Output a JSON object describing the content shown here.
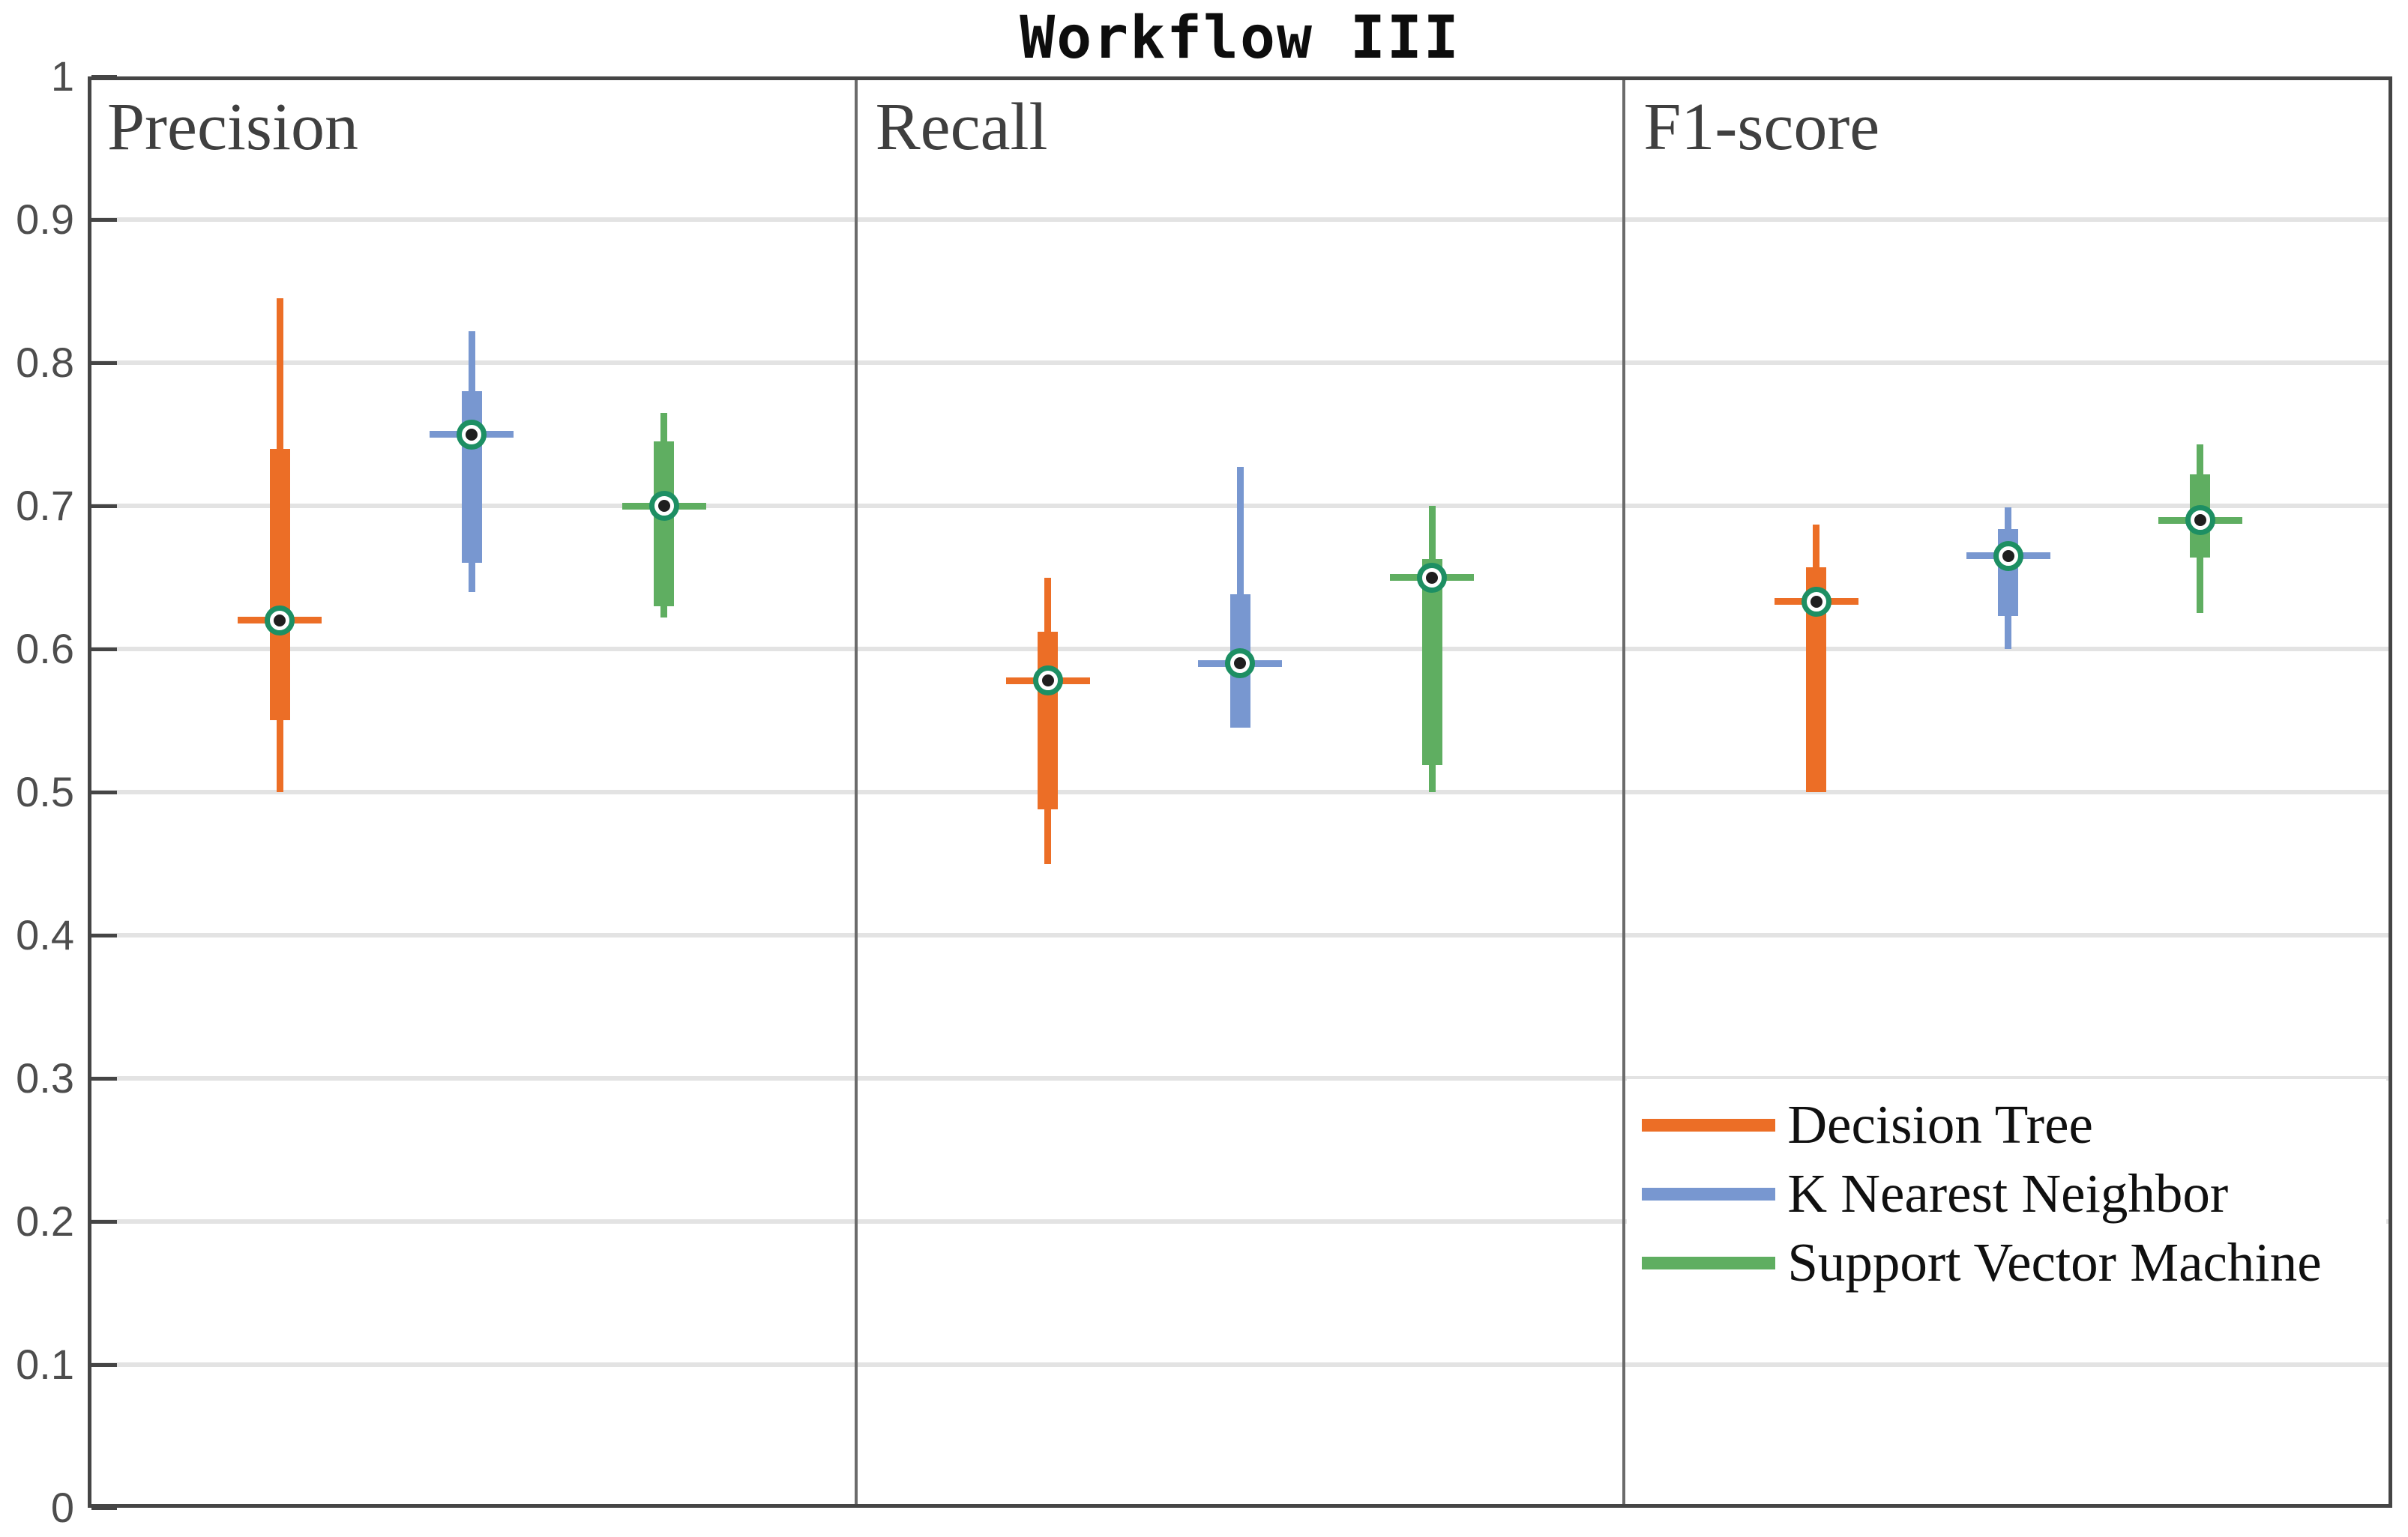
{
  "title": "Workflow III",
  "panel_labels": [
    "Precision",
    "Recall",
    "F1-score"
  ],
  "y_axis": {
    "tick_labels": [
      "0",
      "0.1",
      "0.2",
      "0.3",
      "0.4",
      "0.5",
      "0.6",
      "0.7",
      "0.8",
      "0.9",
      "1"
    ],
    "min": 0,
    "max": 1
  },
  "legend": {
    "items": [
      {
        "label": "Decision Tree",
        "color": "#EC6E26"
      },
      {
        "label": "K Nearest Neighbor",
        "color": "#7897D0"
      },
      {
        "label": "Support Vector Machine",
        "color": "#5FAE61"
      }
    ]
  },
  "style_colors": {
    "axis_border": "#454545",
    "panel_divider": "#6b6b6b",
    "gridline": "#e3e3e3",
    "tick_label": "#4d4d4d",
    "panel_label": "#3f3f3f",
    "median_ring": "#1d8f63",
    "median_dot": "#1f1f1f",
    "decision_tree": "#EC6E26",
    "k_nearest_neighbor": "#7897D0",
    "support_vector_machine": "#5FAE61"
  },
  "chart_data": {
    "type": "boxplot",
    "title": "Workflow III",
    "panels": [
      "Precision",
      "Recall",
      "F1-score"
    ],
    "ylim": [
      0,
      1
    ],
    "yticks": [
      0,
      0.1,
      0.2,
      0.3,
      0.4,
      0.5,
      0.6,
      0.7,
      0.8,
      0.9,
      1
    ],
    "grid": true,
    "legend_position": "bottom-right",
    "series": [
      {
        "name": "Decision Tree",
        "color": "#EC6E26",
        "boxes": {
          "Precision": {
            "whisker_low": 0.5,
            "q1": 0.55,
            "median": 0.62,
            "q3": 0.74,
            "whisker_high": 0.845
          },
          "Recall": {
            "whisker_low": 0.45,
            "q1": 0.488,
            "median": 0.578,
            "q3": 0.612,
            "whisker_high": 0.65
          },
          "F1-score": {
            "whisker_low": 0.5,
            "q1": 0.5,
            "median": 0.633,
            "q3": 0.657,
            "whisker_high": 0.687
          }
        }
      },
      {
        "name": "K Nearest Neighbor",
        "color": "#7897D0",
        "boxes": {
          "Precision": {
            "whisker_low": 0.64,
            "q1": 0.66,
            "median": 0.75,
            "q3": 0.78,
            "whisker_high": 0.822
          },
          "Recall": {
            "whisker_low": 0.545,
            "q1": 0.545,
            "median": 0.59,
            "q3": 0.638,
            "whisker_high": 0.727
          },
          "F1-score": {
            "whisker_low": 0.6,
            "q1": 0.623,
            "median": 0.665,
            "q3": 0.684,
            "whisker_high": 0.699
          }
        }
      },
      {
        "name": "Support Vector Machine",
        "color": "#5FAE61",
        "boxes": {
          "Precision": {
            "whisker_low": 0.622,
            "q1": 0.63,
            "median": 0.7,
            "q3": 0.745,
            "whisker_high": 0.765
          },
          "Recall": {
            "whisker_low": 0.5,
            "q1": 0.519,
            "median": 0.65,
            "q3": 0.663,
            "whisker_high": 0.7
          },
          "F1-score": {
            "whisker_low": 0.625,
            "q1": 0.664,
            "median": 0.69,
            "q3": 0.722,
            "whisker_high": 0.743
          }
        }
      }
    ]
  }
}
